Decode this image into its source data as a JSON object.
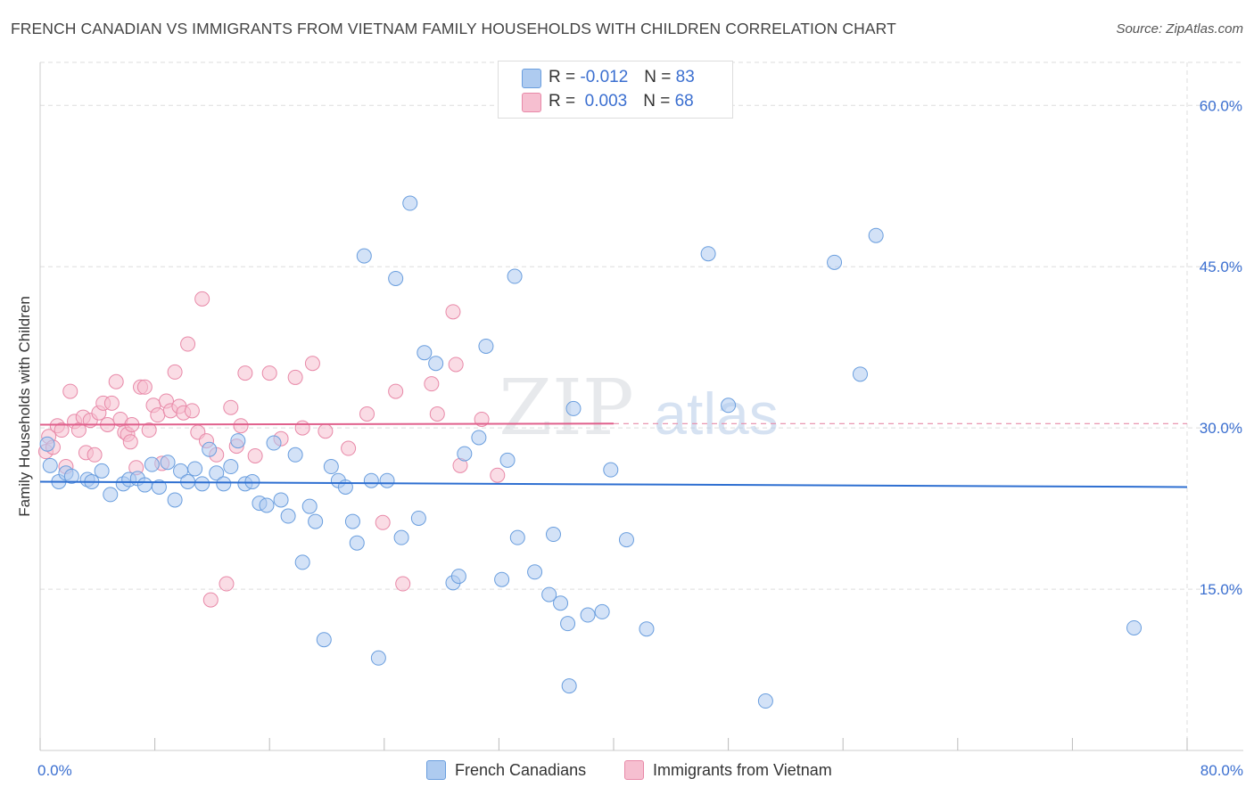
{
  "title": "FRENCH CANADIAN VS IMMIGRANTS FROM VIETNAM FAMILY HOUSEHOLDS WITH CHILDREN CORRELATION CHART",
  "source": "Source: ZipAtlas.com",
  "watermark": {
    "zip": "ZIP",
    "atlas": "atlas"
  },
  "legend_top": {
    "rows": [
      {
        "r_label": "R =",
        "r_value": "-0.012",
        "n_label": "N =",
        "n_value": "83"
      },
      {
        "r_label": "R =",
        "r_value": "0.003",
        "n_label": "N =",
        "n_value": "68"
      }
    ]
  },
  "bottom_legend": [
    "French Canadians",
    "Immigrants from Vietnam"
  ],
  "colors": {
    "blue_fill": "#aecbf0",
    "blue_stroke": "#6a9ede",
    "blue_line": "#2e6fd1",
    "pink_fill": "#f6bfd0",
    "pink_stroke": "#e889a8",
    "pink_line": "#e0608c",
    "tick_label": "#3b6fd0",
    "grid": "#dddddd"
  },
  "chart_data": {
    "type": "scatter",
    "title": "FRENCH CANADIAN VS IMMIGRANTS FROM VIETNAM FAMILY HOUSEHOLDS WITH CHILDREN CORRELATION CHART",
    "xlabel": "",
    "ylabel": "Family Households with Children",
    "xlim": [
      0,
      80
    ],
    "ylim": [
      0,
      64
    ],
    "x_tick_labels": [
      "0.0%",
      "80.0%"
    ],
    "y_ticks": [
      15,
      30,
      45,
      60
    ],
    "y_tick_labels": [
      "15.0%",
      "30.0%",
      "45.0%",
      "60.0%"
    ],
    "grid": true,
    "legend_position": "top-center",
    "series": [
      {
        "name": "French Canadians",
        "r": -0.012,
        "n": 83,
        "trend": {
          "x": [
            0,
            80
          ],
          "y": [
            25.0,
            24.5
          ]
        },
        "points": [
          [
            0.5,
            28.5
          ],
          [
            0.7,
            26.5
          ],
          [
            1.3,
            25.0
          ],
          [
            1.8,
            25.8
          ],
          [
            2.2,
            25.5
          ],
          [
            3.3,
            25.2
          ],
          [
            3.6,
            25.0
          ],
          [
            4.3,
            26.0
          ],
          [
            4.9,
            23.8
          ],
          [
            5.8,
            24.8
          ],
          [
            6.2,
            25.2
          ],
          [
            6.8,
            25.3
          ],
          [
            7.3,
            24.7
          ],
          [
            7.8,
            26.6
          ],
          [
            8.3,
            24.5
          ],
          [
            8.9,
            26.8
          ],
          [
            9.4,
            23.3
          ],
          [
            9.8,
            26.0
          ],
          [
            10.3,
            25.0
          ],
          [
            10.8,
            26.2
          ],
          [
            11.3,
            24.8
          ],
          [
            11.8,
            28.0
          ],
          [
            12.3,
            25.8
          ],
          [
            12.8,
            24.8
          ],
          [
            13.3,
            26.4
          ],
          [
            13.8,
            28.8
          ],
          [
            14.3,
            24.8
          ],
          [
            14.8,
            25.0
          ],
          [
            15.3,
            23.0
          ],
          [
            15.8,
            22.8
          ],
          [
            16.3,
            28.6
          ],
          [
            16.8,
            23.3
          ],
          [
            17.3,
            21.8
          ],
          [
            17.8,
            27.5
          ],
          [
            18.3,
            17.5
          ],
          [
            18.8,
            22.7
          ],
          [
            19.2,
            21.3
          ],
          [
            19.8,
            10.3
          ],
          [
            20.3,
            26.4
          ],
          [
            20.8,
            25.1
          ],
          [
            21.3,
            24.5
          ],
          [
            21.8,
            21.3
          ],
          [
            22.1,
            19.3
          ],
          [
            22.6,
            46.0
          ],
          [
            23.1,
            25.1
          ],
          [
            23.6,
            8.6
          ],
          [
            24.2,
            25.1
          ],
          [
            24.8,
            43.9
          ],
          [
            25.2,
            19.8
          ],
          [
            25.8,
            50.9
          ],
          [
            26.4,
            21.6
          ],
          [
            26.8,
            37.0
          ],
          [
            27.6,
            36.0
          ],
          [
            28.8,
            15.6
          ],
          [
            29.2,
            16.2
          ],
          [
            29.6,
            27.6
          ],
          [
            30.6,
            29.1
          ],
          [
            31.1,
            37.6
          ],
          [
            32.2,
            15.9
          ],
          [
            32.6,
            27.0
          ],
          [
            33.1,
            44.1
          ],
          [
            33.3,
            19.8
          ],
          [
            34.5,
            16.6
          ],
          [
            35.5,
            14.5
          ],
          [
            35.8,
            20.1
          ],
          [
            36.3,
            13.7
          ],
          [
            36.8,
            11.8
          ],
          [
            36.9,
            6.0
          ],
          [
            37.2,
            31.8
          ],
          [
            38.2,
            12.6
          ],
          [
            39.2,
            12.9
          ],
          [
            39.8,
            26.1
          ],
          [
            40.9,
            19.6
          ],
          [
            42.3,
            11.3
          ],
          [
            46.6,
            46.2
          ],
          [
            48.0,
            32.1
          ],
          [
            50.6,
            4.6
          ],
          [
            55.4,
            45.4
          ],
          [
            57.2,
            35.0
          ],
          [
            58.3,
            47.9
          ],
          [
            76.3,
            11.4
          ]
        ]
      },
      {
        "name": "Immigrants from Vietnam",
        "r": 0.003,
        "n": 68,
        "trend": {
          "x": [
            0,
            40
          ],
          "y": [
            30.3,
            30.4
          ]
        },
        "dashed_extension": {
          "x": [
            40,
            80
          ],
          "y": [
            30.4,
            30.4
          ]
        },
        "points": [
          [
            0.4,
            27.8
          ],
          [
            0.6,
            29.2
          ],
          [
            0.9,
            28.2
          ],
          [
            1.2,
            30.2
          ],
          [
            1.5,
            29.8
          ],
          [
            1.8,
            26.4
          ],
          [
            2.1,
            33.4
          ],
          [
            2.4,
            30.6
          ],
          [
            2.7,
            29.8
          ],
          [
            3.0,
            31.0
          ],
          [
            3.2,
            27.7
          ],
          [
            3.5,
            30.7
          ],
          [
            3.8,
            27.5
          ],
          [
            4.1,
            31.4
          ],
          [
            4.4,
            32.3
          ],
          [
            4.7,
            30.3
          ],
          [
            5.0,
            32.3
          ],
          [
            5.3,
            34.3
          ],
          [
            5.6,
            30.8
          ],
          [
            5.9,
            29.6
          ],
          [
            6.1,
            29.4
          ],
          [
            6.3,
            28.7
          ],
          [
            6.4,
            30.3
          ],
          [
            6.7,
            26.3
          ],
          [
            7.0,
            33.8
          ],
          [
            7.3,
            33.8
          ],
          [
            7.6,
            29.8
          ],
          [
            7.9,
            32.1
          ],
          [
            8.2,
            31.2
          ],
          [
            8.5,
            26.7
          ],
          [
            8.8,
            32.5
          ],
          [
            9.1,
            31.6
          ],
          [
            9.4,
            35.2
          ],
          [
            9.7,
            32.0
          ],
          [
            10.0,
            31.4
          ],
          [
            10.3,
            37.8
          ],
          [
            10.6,
            31.6
          ],
          [
            11.0,
            29.6
          ],
          [
            11.3,
            42.0
          ],
          [
            11.6,
            28.8
          ],
          [
            11.9,
            14.0
          ],
          [
            12.3,
            27.5
          ],
          [
            13.0,
            15.5
          ],
          [
            13.3,
            31.9
          ],
          [
            13.7,
            28.3
          ],
          [
            14.0,
            30.2
          ],
          [
            14.3,
            35.1
          ],
          [
            15.0,
            27.4
          ],
          [
            16.0,
            35.1
          ],
          [
            16.8,
            29.0
          ],
          [
            17.8,
            34.7
          ],
          [
            18.3,
            30.0
          ],
          [
            19.0,
            36.0
          ],
          [
            19.9,
            29.7
          ],
          [
            21.5,
            28.1
          ],
          [
            22.8,
            31.3
          ],
          [
            23.9,
            21.2
          ],
          [
            24.8,
            33.4
          ],
          [
            25.3,
            15.5
          ],
          [
            27.3,
            34.1
          ],
          [
            27.7,
            31.3
          ],
          [
            28.8,
            40.8
          ],
          [
            29.0,
            35.9
          ],
          [
            29.3,
            26.5
          ],
          [
            30.8,
            30.8
          ],
          [
            31.9,
            25.6
          ]
        ]
      }
    ]
  }
}
